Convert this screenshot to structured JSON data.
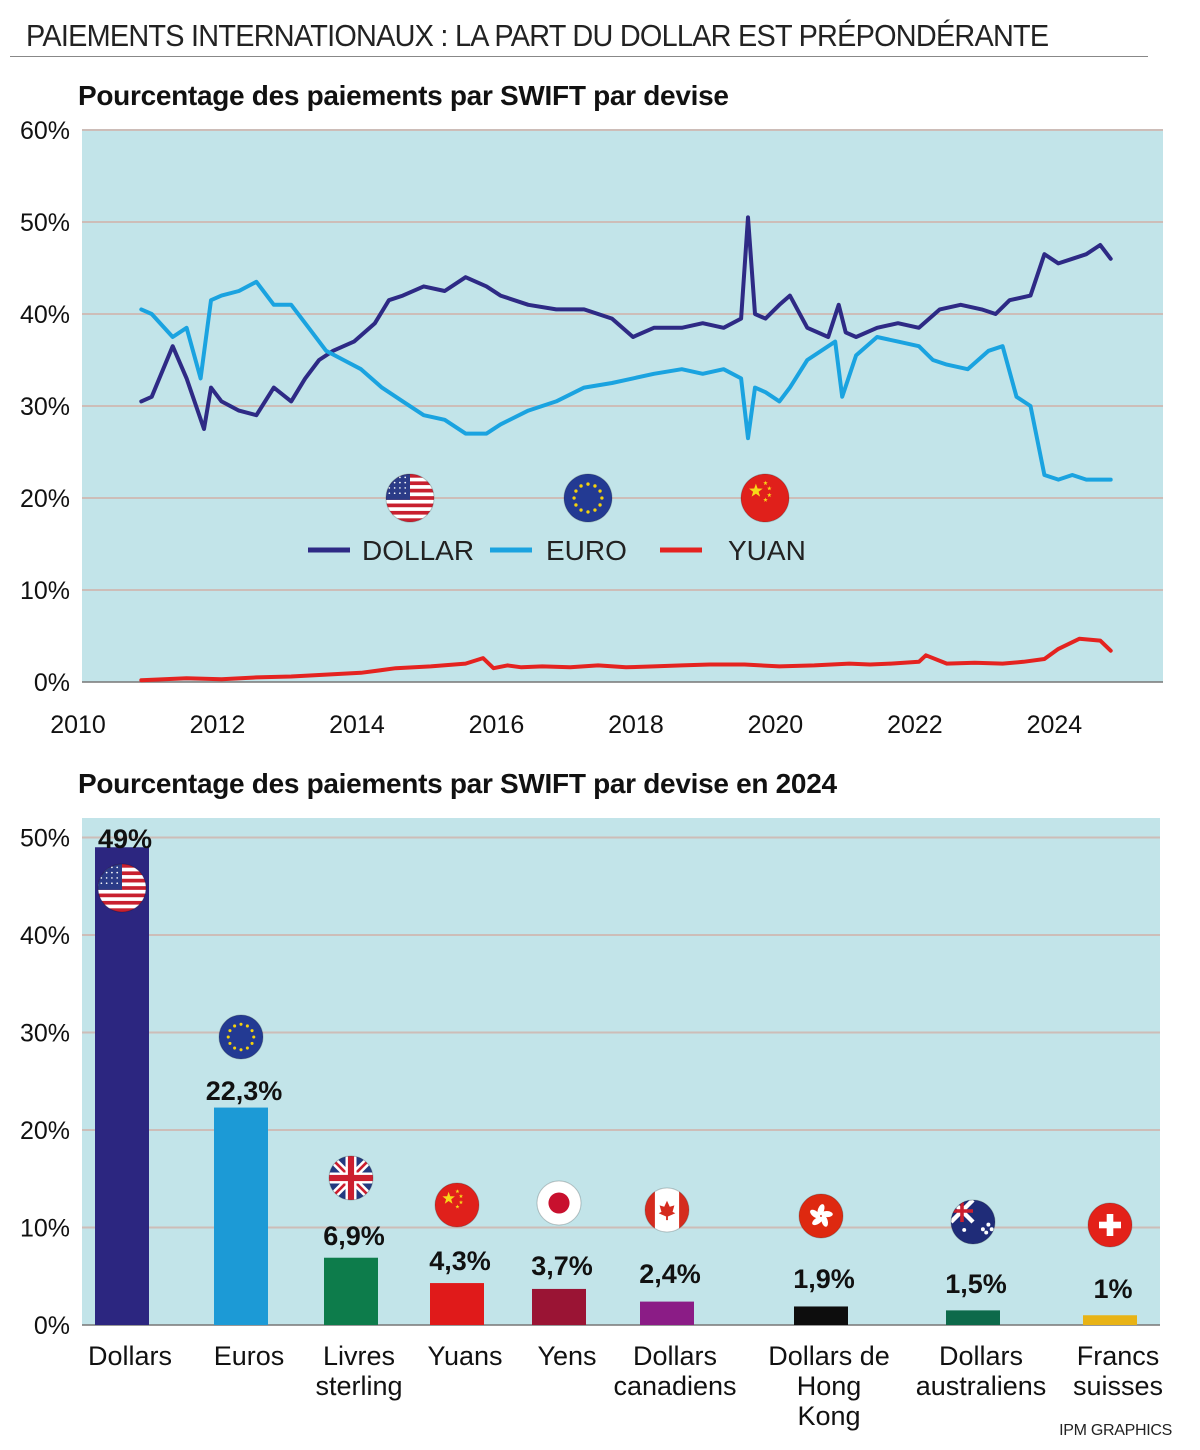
{
  "header": {
    "title": "PAIEMENTS INTERNATIONAUX : LA PART DU DOLLAR EST PRÉPONDÉRANTE",
    "credit": "IPM GRAPHICS"
  },
  "colors": {
    "plot_background": "#c2e4e9",
    "gridline": "#cdbdb8",
    "dollar": "#2e2a85",
    "euro": "#1aa3e0",
    "yuan": "#e42320"
  },
  "chart_data": [
    {
      "type": "line",
      "title": "Pourcentage des paiements par SWIFT par devise",
      "xlabel": "",
      "ylabel": "",
      "xlim": [
        2010,
        2025.5
      ],
      "ylim": [
        0,
        60
      ],
      "x_ticks": [
        "2010",
        "2012",
        "2014",
        "2016",
        "2018",
        "2020",
        "2022",
        "2024"
      ],
      "y_ticks": [
        "0%",
        "10%",
        "20%",
        "30%",
        "40%",
        "50%",
        "60%"
      ],
      "grid": true,
      "legend": "center",
      "legend_icons": [
        "us-flag-icon",
        "eu-flag-icon",
        "china-flag-icon"
      ],
      "series": [
        {
          "name": "DOLLAR",
          "color": "#2e2a85",
          "x": [
            2010.85,
            2011.0,
            2011.3,
            2011.5,
            2011.75,
            2011.85,
            2012.0,
            2012.25,
            2012.5,
            2012.75,
            2013.0,
            2013.2,
            2013.4,
            2013.6,
            2013.9,
            2014.2,
            2014.4,
            2014.6,
            2014.9,
            2015.2,
            2015.5,
            2015.8,
            2016.0,
            2016.4,
            2016.8,
            2017.2,
            2017.6,
            2017.9,
            2018.2,
            2018.6,
            2018.9,
            2019.2,
            2019.45,
            2019.55,
            2019.65,
            2019.8,
            2020.0,
            2020.15,
            2020.4,
            2020.7,
            2020.85,
            2020.95,
            2021.1,
            2021.4,
            2021.7,
            2022.0,
            2022.3,
            2022.6,
            2022.9,
            2023.1,
            2023.3,
            2023.6,
            2023.8,
            2024.0,
            2024.2,
            2024.4,
            2024.6,
            2024.75
          ],
          "values": [
            30.5,
            31,
            36.5,
            33,
            27.5,
            32,
            30.5,
            29.5,
            29,
            32,
            30.5,
            33,
            35,
            36,
            37,
            39,
            41.5,
            42,
            43,
            42.5,
            44,
            43,
            42,
            41,
            40.5,
            40.5,
            39.5,
            37.5,
            38.5,
            38.5,
            39,
            38.5,
            39.5,
            50.5,
            40,
            39.5,
            41,
            42,
            38.5,
            37.5,
            41,
            38,
            37.5,
            38.5,
            39,
            38.5,
            40.5,
            41,
            40.5,
            40,
            41.5,
            42,
            46.5,
            45.5,
            46,
            46.5,
            47.5,
            46
          ]
        },
        {
          "name": "EURO",
          "color": "#1aa3e0",
          "x": [
            2010.85,
            2011.0,
            2011.3,
            2011.5,
            2011.7,
            2011.85,
            2012.0,
            2012.25,
            2012.5,
            2012.75,
            2013.0,
            2013.25,
            2013.5,
            2013.75,
            2014.0,
            2014.3,
            2014.6,
            2014.9,
            2015.2,
            2015.5,
            2015.8,
            2016.0,
            2016.4,
            2016.8,
            2017.2,
            2017.6,
            2017.9,
            2018.2,
            2018.6,
            2018.9,
            2019.2,
            2019.45,
            2019.55,
            2019.65,
            2019.8,
            2020.0,
            2020.15,
            2020.4,
            2020.7,
            2020.8,
            2020.9,
            2021.1,
            2021.4,
            2021.7,
            2022.0,
            2022.2,
            2022.4,
            2022.7,
            2023.0,
            2023.2,
            2023.4,
            2023.6,
            2023.8,
            2024.0,
            2024.2,
            2024.4,
            2024.6,
            2024.75
          ],
          "values": [
            40.5,
            40,
            37.5,
            38.5,
            33,
            41.5,
            42,
            42.5,
            43.5,
            41,
            41,
            38.5,
            36,
            35,
            34,
            32,
            30.5,
            29,
            28.5,
            27,
            27,
            28,
            29.5,
            30.5,
            32,
            32.5,
            33,
            33.5,
            34,
            33.5,
            34,
            33,
            26.5,
            32,
            31.5,
            30.5,
            32,
            35,
            36.5,
            37,
            31,
            35.5,
            37.5,
            37,
            36.5,
            35,
            34.5,
            34,
            36,
            36.5,
            31,
            30,
            22.5,
            22,
            22.5,
            22,
            22,
            22
          ]
        },
        {
          "name": "YUAN",
          "color": "#e42320",
          "x": [
            2010.85,
            2011.5,
            2012.0,
            2012.5,
            2013.0,
            2013.5,
            2014.0,
            2014.2,
            2014.5,
            2015.0,
            2015.5,
            2015.75,
            2015.9,
            2016.1,
            2016.3,
            2016.6,
            2017.0,
            2017.4,
            2017.8,
            2018.2,
            2018.6,
            2019.0,
            2019.5,
            2020.0,
            2020.5,
            2021.0,
            2021.3,
            2021.6,
            2022.0,
            2022.1,
            2022.4,
            2022.8,
            2023.2,
            2023.5,
            2023.8,
            2024.0,
            2024.3,
            2024.6,
            2024.75
          ],
          "values": [
            0.2,
            0.4,
            0.3,
            0.5,
            0.6,
            0.8,
            1.0,
            1.2,
            1.5,
            1.7,
            2.0,
            2.6,
            1.5,
            1.8,
            1.6,
            1.7,
            1.6,
            1.8,
            1.6,
            1.7,
            1.8,
            1.9,
            1.9,
            1.7,
            1.8,
            2.0,
            1.9,
            2.0,
            2.2,
            2.9,
            2.0,
            2.1,
            2.0,
            2.2,
            2.5,
            3.6,
            4.7,
            4.5,
            3.4
          ]
        }
      ]
    },
    {
      "type": "bar",
      "title": "Pourcentage des paiements par SWIFT par devise en 2024",
      "xlabel": "",
      "ylabel": "",
      "ylim": [
        0,
        52
      ],
      "y_ticks": [
        "0%",
        "10%",
        "20%",
        "30%",
        "40%",
        "50%"
      ],
      "grid": true,
      "categories": [
        "Dollars",
        "Euros",
        "Livres sterling",
        "Yuans",
        "Yens",
        "Dollars canadiens",
        "Dollars de Hong Kong",
        "Dollars australiens",
        "Francs suisses"
      ],
      "category_lines": [
        [
          "Dollars"
        ],
        [
          "Euros"
        ],
        [
          "Livres",
          "sterling"
        ],
        [
          "Yuans"
        ],
        [
          "Yens"
        ],
        [
          "Dollars",
          "canadiens"
        ],
        [
          "Dollars de",
          "Hong",
          "Kong"
        ],
        [
          "Dollars",
          "australiens"
        ],
        [
          "Francs",
          "suisses"
        ]
      ],
      "values": [
        49,
        22.3,
        6.9,
        4.3,
        3.7,
        2.4,
        1.9,
        1.5,
        1
      ],
      "value_labels": [
        "49%",
        "22,3%",
        "6,9%",
        "4,3%",
        "3,7%",
        "2,4%",
        "1,9%",
        "1,5%",
        "1%"
      ],
      "colors": [
        "#2c2680",
        "#1c9ad6",
        "#0d7c4b",
        "#e01a1a",
        "#9a1434",
        "#8b1c86",
        "#0d0d0d",
        "#0d6a4a",
        "#e8b316"
      ],
      "icons": [
        "us-flag-icon",
        "eu-flag-icon",
        "uk-flag-icon",
        "china-flag-icon",
        "japan-flag-icon",
        "canada-flag-icon",
        "hong-kong-flag-icon",
        "australia-flag-icon",
        "swiss-flag-icon"
      ]
    }
  ]
}
